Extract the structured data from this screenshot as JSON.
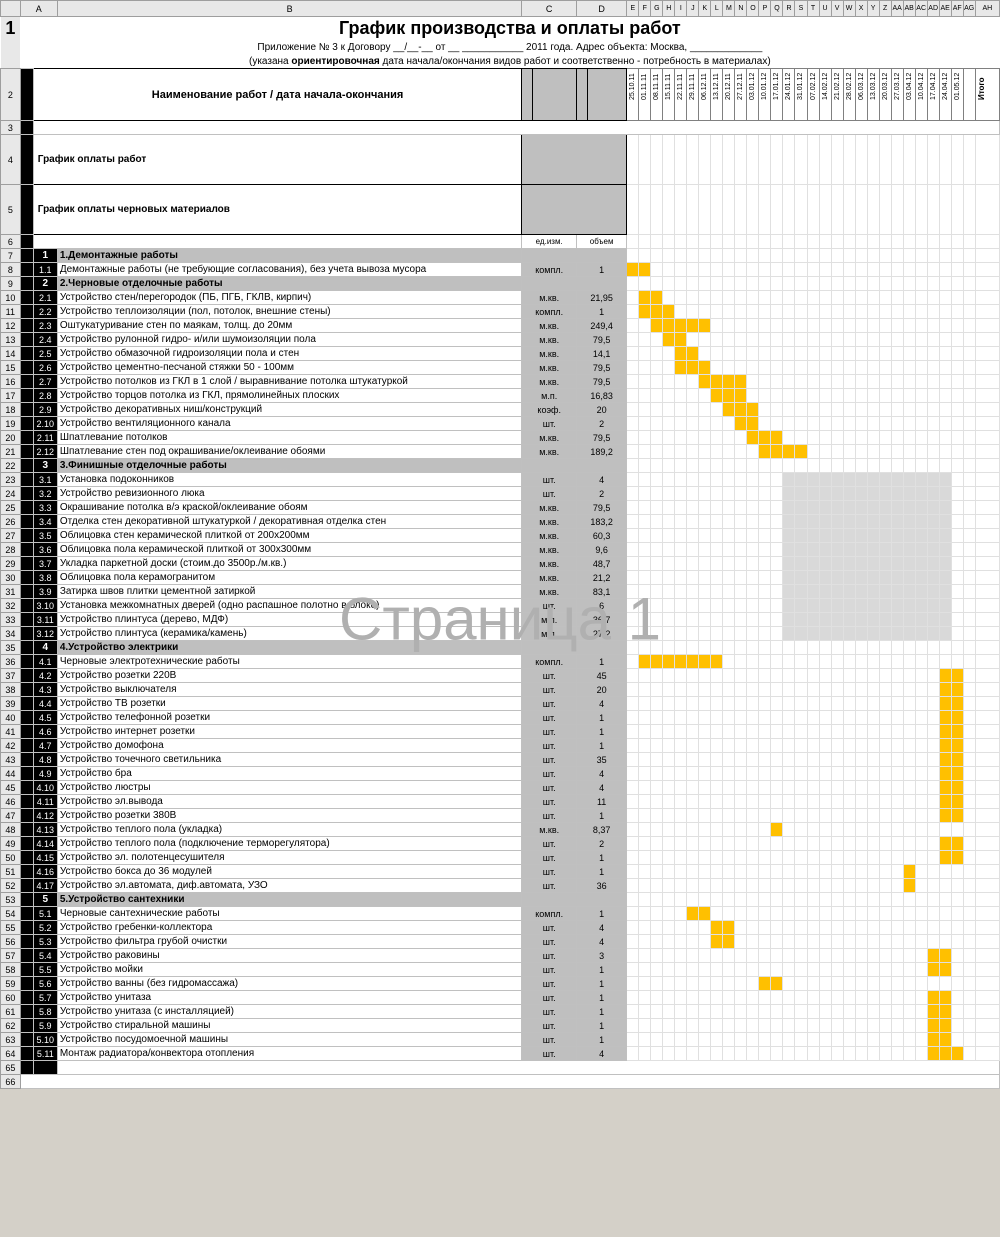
{
  "watermark": "Страница 1",
  "colHeaders": [
    "",
    "A",
    "B",
    "C",
    "D",
    "E",
    "F",
    "G",
    "H",
    "I",
    "J",
    "K",
    "L",
    "M",
    "N",
    "O",
    "P",
    "Q",
    "R",
    "S",
    "T",
    "U",
    "V",
    "W",
    "X",
    "Y",
    "Z",
    "AA",
    "AB",
    "AC",
    "AD",
    "AE",
    "AF",
    "AG",
    "AH"
  ],
  "title": "График производства и оплаты работ",
  "subtitle1": "Приложение № 3 к Договору __/__-__ от __ ___________ 2011 года. Адрес объекта: Москва, _____________",
  "subtitle2_pre": "(указана ",
  "subtitle2_bold": "ориентировочная",
  "subtitle2_post": " дата начала/окончания видов работ и соответственно - потребность в материалах)",
  "mainHeader": "Наименование работ / дата начала-окончания",
  "dates": [
    "25.10.11",
    "01.11.11",
    "08.11.11",
    "15.11.11",
    "22.11.11",
    "29.11.11",
    "06.12.11",
    "13.12.11",
    "20.12.11",
    "27.12.11",
    "03.01.12",
    "10.01.12",
    "17.01.12",
    "24.01.12",
    "31.01.12",
    "07.02.12",
    "14.02.12",
    "21.02.12",
    "28.02.12",
    "06.03.12",
    "13.03.12",
    "20.03.12",
    "27.03.12",
    "03.04.12",
    "10.04.12",
    "17.04.12",
    "24.04.12",
    "01.05.12"
  ],
  "itogo": "Итого",
  "paymentSchedule": "График оплаты работ",
  "materialsSchedule": "График оплаты черновых материалов",
  "unitLabel": "ед.изм.",
  "volLabel": "объем",
  "rows": [
    {
      "r": 7,
      "type": "section",
      "num": "1",
      "name": "1.Демонтажные работы"
    },
    {
      "r": 8,
      "num": "1.1",
      "name": "Демонтажные работы (не требующие согласования), без учета вывоза мусора",
      "unit": "компл.",
      "vol": "1",
      "g": [
        1,
        2
      ]
    },
    {
      "r": 9,
      "type": "section",
      "num": "2",
      "name": "2.Черновые отделочные работы"
    },
    {
      "r": 10,
      "num": "2.1",
      "name": "Устройство стен/перегородок (ПБ, ПГБ, ГКЛВ, кирпич)",
      "unit": "м.кв.",
      "vol": "21,95",
      "g": [
        2,
        3
      ]
    },
    {
      "r": 11,
      "num": "2.2",
      "name": "Устройство теплоизоляции (пол, потолок, внешние стены)",
      "unit": "компл.",
      "vol": "1",
      "g": [
        2,
        3,
        4
      ]
    },
    {
      "r": 12,
      "num": "2.3",
      "name": "Оштукатуривание стен по маякам, толщ. до 20мм",
      "unit": "м.кв.",
      "vol": "249,4",
      "g": [
        3,
        4,
        5,
        6,
        7
      ]
    },
    {
      "r": 13,
      "num": "2.4",
      "name": "Устройство рулонной гидро- и/или шумоизоляции пола",
      "unit": "м.кв.",
      "vol": "79,5",
      "g": [
        4,
        5
      ]
    },
    {
      "r": 14,
      "num": "2.5",
      "name": "Устройство обмазочной гидроизоляции пола и стен",
      "unit": "м.кв.",
      "vol": "14,1",
      "g": [
        5,
        6
      ]
    },
    {
      "r": 15,
      "num": "2.6",
      "name": "Устройство цементно-песчаной стяжки 50 - 100мм",
      "unit": "м.кв.",
      "vol": "79,5",
      "g": [
        5,
        6,
        7
      ]
    },
    {
      "r": 16,
      "num": "2.7",
      "name": "Устройство потолков из ГКЛ в 1 слой / выравнивание потолка штукатуркой",
      "unit": "м.кв.",
      "vol": "79,5",
      "g": [
        7,
        8,
        9,
        10
      ]
    },
    {
      "r": 17,
      "num": "2.8",
      "name": "Устройство торцов потолка из ГКЛ, прямолинейных плоских",
      "unit": "м.п.",
      "vol": "16,83",
      "g": [
        8,
        9,
        10
      ]
    },
    {
      "r": 18,
      "num": "2.9",
      "name": "Устройство декоративных ниш/конструкций",
      "unit": "коэф.",
      "vol": "20",
      "g": [
        9,
        10,
        11
      ]
    },
    {
      "r": 19,
      "num": "2.10",
      "name": "Устройство вентиляционного канала",
      "unit": "шт.",
      "vol": "2",
      "g": [
        10,
        11
      ]
    },
    {
      "r": 20,
      "num": "2.11",
      "name": "Шпатлевание потолков",
      "unit": "м.кв.",
      "vol": "79,5",
      "g": [
        11,
        12,
        13
      ]
    },
    {
      "r": 21,
      "num": "2.12",
      "name": "Шпатлевание стен под окрашивание/оклеивание обоями",
      "unit": "м.кв.",
      "vol": "189,2",
      "g": [
        12,
        13,
        14,
        15
      ]
    },
    {
      "r": 22,
      "type": "section",
      "num": "3",
      "name": "3.Финишные отделочные работы"
    },
    {
      "r": 23,
      "num": "3.1",
      "name": "Установка подоконников",
      "unit": "шт.",
      "vol": "4",
      "gray": [
        14,
        15,
        16,
        17,
        18,
        19,
        20,
        21,
        22,
        23,
        24,
        25,
        26,
        27
      ]
    },
    {
      "r": 24,
      "num": "3.2",
      "name": "Устройство ревизионного люка",
      "unit": "шт.",
      "vol": "2",
      "gray": [
        14,
        15,
        16,
        17,
        18,
        19,
        20,
        21,
        22,
        23,
        24,
        25,
        26,
        27
      ]
    },
    {
      "r": 25,
      "num": "3.3",
      "name": "Окрашивание потолка в/э краской/оклеивание обоям",
      "unit": "м.кв.",
      "vol": "79,5",
      "gray": [
        14,
        15,
        16,
        17,
        18,
        19,
        20,
        21,
        22,
        23,
        24,
        25,
        26,
        27
      ]
    },
    {
      "r": 26,
      "num": "3.4",
      "name": "Отделка стен декоративной штукатуркой / декоративная отделка стен",
      "unit": "м.кв.",
      "vol": "183,2",
      "gray": [
        14,
        15,
        16,
        17,
        18,
        19,
        20,
        21,
        22,
        23,
        24,
        25,
        26,
        27
      ]
    },
    {
      "r": 27,
      "num": "3.5",
      "name": "Облицовка стен керамической плиткой от 200х200мм",
      "unit": "м.кв.",
      "vol": "60,3",
      "gray": [
        14,
        15,
        16,
        17,
        18,
        19,
        20,
        21,
        22,
        23,
        24,
        25,
        26,
        27
      ]
    },
    {
      "r": 28,
      "num": "3.6",
      "name": "Облицовка пола керамической плиткой от 300х300мм",
      "unit": "м.кв.",
      "vol": "9,6",
      "gray": [
        14,
        15,
        16,
        17,
        18,
        19,
        20,
        21,
        22,
        23,
        24,
        25,
        26,
        27
      ]
    },
    {
      "r": 29,
      "num": "3.7",
      "name": "Укладка паркетной доски (стоим.до 3500р./м.кв.)",
      "unit": "м.кв.",
      "vol": "48,7",
      "gray": [
        14,
        15,
        16,
        17,
        18,
        19,
        20,
        21,
        22,
        23,
        24,
        25,
        26,
        27
      ]
    },
    {
      "r": 30,
      "num": "3.8",
      "name": "Облицовка пола керамогранитом",
      "unit": "м.кв.",
      "vol": "21,2",
      "gray": [
        14,
        15,
        16,
        17,
        18,
        19,
        20,
        21,
        22,
        23,
        24,
        25,
        26,
        27
      ]
    },
    {
      "r": 31,
      "num": "3.9",
      "name": "Затирка швов плитки цементной затиркой",
      "unit": "м.кв.",
      "vol": "83,1",
      "gray": [
        14,
        15,
        16,
        17,
        18,
        19,
        20,
        21,
        22,
        23,
        24,
        25,
        26,
        27
      ]
    },
    {
      "r": 32,
      "num": "3.10",
      "name": "Установка межкомнатных дверей (одно распашное полотно в блоке)",
      "unit": "шт.",
      "vol": "6",
      "gray": [
        14,
        15,
        16,
        17,
        18,
        19,
        20,
        21,
        22,
        23,
        24,
        25,
        26,
        27
      ]
    },
    {
      "r": 33,
      "num": "3.11",
      "name": "Устройство плинтуса (дерево, МДФ)",
      "unit": "м.п.",
      "vol": "36,7",
      "gray": [
        14,
        15,
        16,
        17,
        18,
        19,
        20,
        21,
        22,
        23,
        24,
        25,
        26,
        27
      ]
    },
    {
      "r": 34,
      "num": "3.12",
      "name": "Устройство плинтуса (керамика/камень)",
      "unit": "м.п.",
      "vol": "27,2",
      "gray": [
        14,
        15,
        16,
        17,
        18,
        19,
        20,
        21,
        22,
        23,
        24,
        25,
        26,
        27
      ]
    },
    {
      "r": 35,
      "type": "section",
      "num": "4",
      "name": "4.Устройство электрики"
    },
    {
      "r": 36,
      "num": "4.1",
      "name": "Черновые электротехнические работы",
      "unit": "компл.",
      "vol": "1",
      "g": [
        2,
        3,
        4,
        5,
        6,
        7,
        8
      ]
    },
    {
      "r": 37,
      "num": "4.2",
      "name": "Устройство розетки 220В",
      "unit": "шт.",
      "vol": "45",
      "g": [
        27,
        28
      ]
    },
    {
      "r": 38,
      "num": "4.3",
      "name": "Устройство выключателя",
      "unit": "шт.",
      "vol": "20",
      "g": [
        27,
        28
      ]
    },
    {
      "r": 39,
      "num": "4.4",
      "name": "Устройство ТВ розетки",
      "unit": "шт.",
      "vol": "4",
      "g": [
        27,
        28
      ]
    },
    {
      "r": 40,
      "num": "4.5",
      "name": "Устройство телефонной розетки",
      "unit": "шт.",
      "vol": "1",
      "g": [
        27,
        28
      ]
    },
    {
      "r": 41,
      "num": "4.6",
      "name": "Устройство интернет розетки",
      "unit": "шт.",
      "vol": "1",
      "g": [
        27,
        28
      ]
    },
    {
      "r": 42,
      "num": "4.7",
      "name": "Устройство домофона",
      "unit": "шт.",
      "vol": "1",
      "g": [
        27,
        28
      ]
    },
    {
      "r": 43,
      "num": "4.8",
      "name": "Устройство точечного светильника",
      "unit": "шт.",
      "vol": "35",
      "g": [
        27,
        28
      ]
    },
    {
      "r": 44,
      "num": "4.9",
      "name": "Устройство бра",
      "unit": "шт.",
      "vol": "4",
      "g": [
        27,
        28
      ]
    },
    {
      "r": 45,
      "num": "4.10",
      "name": "Устройство люстры",
      "unit": "шт.",
      "vol": "4",
      "g": [
        27,
        28
      ]
    },
    {
      "r": 46,
      "num": "4.11",
      "name": "Устройство эл.вывода",
      "unit": "шт.",
      "vol": "11",
      "g": [
        27,
        28
      ]
    },
    {
      "r": 47,
      "num": "4.12",
      "name": "Устройство розетки 380В",
      "unit": "шт.",
      "vol": "1",
      "g": [
        27,
        28
      ]
    },
    {
      "r": 48,
      "num": "4.13",
      "name": "Устройство теплого пола (укладка)",
      "unit": "м.кв.",
      "vol": "8,37",
      "g": [
        13
      ]
    },
    {
      "r": 49,
      "num": "4.14",
      "name": "Устройство теплого пола (подключение терморегулятора)",
      "unit": "шт.",
      "vol": "2",
      "g": [
        27,
        28
      ]
    },
    {
      "r": 50,
      "num": "4.15",
      "name": "Устройство эл. полотенцесушителя",
      "unit": "шт.",
      "vol": "1",
      "g": [
        27,
        28
      ]
    },
    {
      "r": 51,
      "num": "4.16",
      "name": "Устройство бокса до 36 модулей",
      "unit": "шт.",
      "vol": "1",
      "g": [
        24
      ]
    },
    {
      "r": 52,
      "num": "4.17",
      "name": "Устройство эл.автомата, диф.автомата, УЗО",
      "unit": "шт.",
      "vol": "36",
      "g": [
        24
      ]
    },
    {
      "r": 53,
      "type": "section",
      "num": "5",
      "name": "5.Устройство сантехники"
    },
    {
      "r": 54,
      "num": "5.1",
      "name": "Черновые сантехнические работы",
      "unit": "компл.",
      "vol": "1",
      "g": [
        6,
        7
      ]
    },
    {
      "r": 55,
      "num": "5.2",
      "name": "Устройство гребенки-коллектора",
      "unit": "шт.",
      "vol": "4",
      "g": [
        8,
        9
      ]
    },
    {
      "r": 56,
      "num": "5.3",
      "name": "Устройство фильтра грубой очистки",
      "unit": "шт.",
      "vol": "4",
      "g": [
        8,
        9
      ]
    },
    {
      "r": 57,
      "num": "5.4",
      "name": "Устройство раковины",
      "unit": "шт.",
      "vol": "3",
      "g": [
        26,
        27
      ]
    },
    {
      "r": 58,
      "num": "5.5",
      "name": "Устройство мойки",
      "unit": "шт.",
      "vol": "1",
      "g": [
        26,
        27
      ]
    },
    {
      "r": 59,
      "num": "5.6",
      "name": "Устройство ванны (без гидромассажа)",
      "unit": "шт.",
      "vol": "1",
      "g": [
        12,
        13
      ]
    },
    {
      "r": 60,
      "num": "5.7",
      "name": "Устройство унитаза",
      "unit": "шт.",
      "vol": "1",
      "g": [
        26,
        27
      ]
    },
    {
      "r": 61,
      "num": "5.8",
      "name": "Устройство унитаза (с инсталляцией)",
      "unit": "шт.",
      "vol": "1",
      "g": [
        26,
        27
      ]
    },
    {
      "r": 62,
      "num": "5.9",
      "name": "Устройство стиральной машины",
      "unit": "шт.",
      "vol": "1",
      "g": [
        26,
        27
      ]
    },
    {
      "r": 63,
      "num": "5.10",
      "name": "Устройство посудомоечной машины",
      "unit": "шт.",
      "vol": "1",
      "g": [
        26,
        27
      ]
    },
    {
      "r": 64,
      "num": "5.11",
      "name": "Монтаж радиатора/конвектора отопления",
      "unit": "шт.",
      "vol": "4",
      "g": [
        26,
        27,
        28
      ]
    }
  ],
  "colors": {
    "gantt": "#ffc000",
    "gray": "#d9d9d9",
    "headerGray": "#bfbfbf",
    "black": "#000000"
  }
}
